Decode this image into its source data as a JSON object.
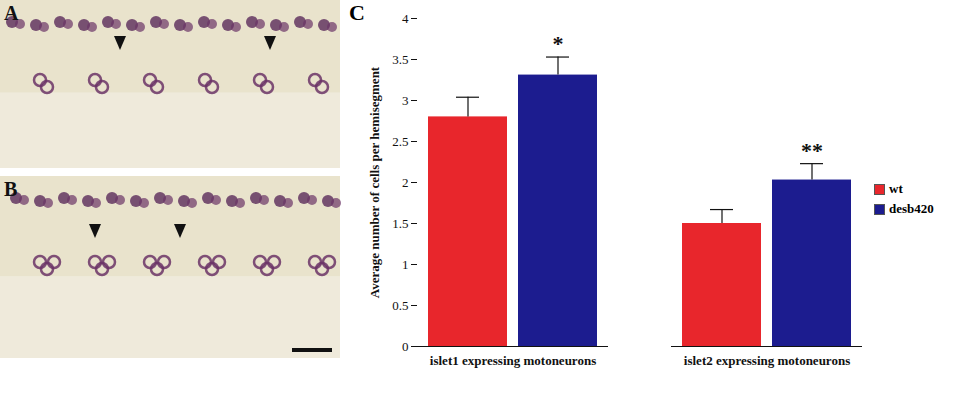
{
  "figure": {
    "panel_labels": [
      "A",
      "B",
      "C"
    ]
  },
  "chart_data": {
    "type": "bar",
    "y_label": "Average number of cells per hemisegment",
    "categories": [
      "islet1 expressing motoneurons",
      "islet2 expressing motoneurons"
    ],
    "series": [
      {
        "name": "wt",
        "color": "#e8262c",
        "values": [
          2.8,
          1.5
        ],
        "errors": [
          0.24,
          0.17
        ]
      },
      {
        "name": "desb420",
        "color": "#1c1c8f",
        "values": [
          3.31,
          2.03
        ],
        "errors": [
          0.22,
          0.2
        ]
      }
    ],
    "annotations": [
      {
        "text": "*",
        "category": "islet1 expressing motoneurons",
        "series": "desb420"
      },
      {
        "text": "**",
        "category": "islet2 expressing motoneurons",
        "series": "desb420"
      }
    ],
    "ylim": [
      0,
      4
    ],
    "yticks": [
      0,
      0.5,
      1,
      1.5,
      2,
      2.5,
      3,
      3.5,
      4
    ],
    "legend": "right"
  }
}
